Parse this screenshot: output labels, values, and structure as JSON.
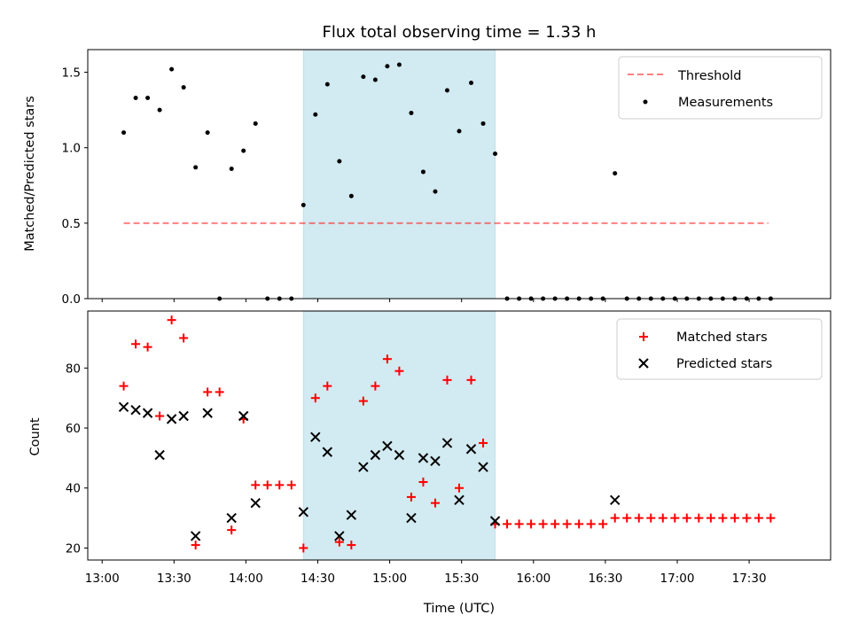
{
  "chart_data": [
    {
      "type": "scatter",
      "title": "Flux total observing time = 1.33 h",
      "xlabel": "",
      "ylabel": "Matched/Predicted stars",
      "ylim": [
        0,
        1.65
      ],
      "yticks": [
        0.0,
        0.5,
        1.0,
        1.5
      ],
      "ytick_labels": [
        "0.0",
        "0.5",
        "1.0",
        "1.5"
      ],
      "x_unit": "UTC time",
      "xlim": [
        "12:54",
        "18:04"
      ],
      "highlight_span": {
        "from": "14:24",
        "to": "15:44",
        "color": "#add8e6"
      },
      "legend": {
        "placement": "upper right"
      },
      "series": [
        {
          "name": "Threshold",
          "kind": "line",
          "style": "dashed",
          "color": "#ff0000",
          "x": [
            "13:09",
            "17:38"
          ],
          "y": [
            0.5,
            0.5
          ]
        },
        {
          "name": "Measurements",
          "kind": "scatter",
          "marker": "dot",
          "color": "#000000",
          "x": [
            "13:09",
            "13:14",
            "13:19",
            "13:24",
            "13:29",
            "13:34",
            "13:39",
            "13:44",
            "13:49",
            "13:54",
            "13:59",
            "14:04",
            "14:09",
            "14:14",
            "14:19",
            "14:24",
            "14:29",
            "14:34",
            "14:39",
            "14:44",
            "14:49",
            "14:54",
            "14:59",
            "15:04",
            "15:09",
            "15:14",
            "15:19",
            "15:24",
            "15:29",
            "15:34",
            "15:39",
            "15:44",
            "15:49",
            "15:54",
            "15:59",
            "16:04",
            "16:09",
            "16:14",
            "16:19",
            "16:24",
            "16:29",
            "16:34",
            "16:39",
            "16:44",
            "16:49",
            "16:54",
            "16:59",
            "17:04",
            "17:09",
            "17:14",
            "17:19",
            "17:24",
            "17:29",
            "17:34",
            "17:39"
          ],
          "y": [
            1.1,
            1.33,
            1.33,
            1.25,
            1.52,
            1.4,
            0.87,
            1.1,
            0.0,
            0.86,
            0.98,
            1.16,
            0.0,
            0.0,
            0.0,
            0.62,
            1.22,
            1.42,
            0.91,
            0.68,
            1.47,
            1.45,
            1.54,
            1.55,
            1.23,
            0.84,
            0.71,
            1.38,
            1.11,
            1.43,
            1.16,
            0.96,
            0.0,
            0.0,
            0.0,
            0.0,
            0.0,
            0.0,
            0.0,
            0.0,
            0.0,
            0.83,
            0.0,
            0.0,
            0.0,
            0.0,
            0.0,
            0.0,
            0.0,
            0.0,
            0.0,
            0.0,
            0.0,
            0.0,
            0.0
          ]
        }
      ]
    },
    {
      "type": "scatter",
      "title": "",
      "xlabel": "Time (UTC)",
      "ylabel": "Count",
      "ylim": [
        16,
        99
      ],
      "yticks": [
        20,
        40,
        60,
        80
      ],
      "ytick_labels": [
        "20",
        "40",
        "60",
        "80"
      ],
      "x_unit": "UTC time",
      "xlim": [
        "12:54",
        "18:04"
      ],
      "xticks": [
        "13:00",
        "13:30",
        "14:00",
        "14:30",
        "15:00",
        "15:30",
        "16:00",
        "16:30",
        "17:00",
        "17:30"
      ],
      "xtick_labels": [
        "13:00",
        "13:30",
        "14:00",
        "14:30",
        "15:00",
        "15:30",
        "16:00",
        "16:30",
        "17:00",
        "17:30"
      ],
      "highlight_span": {
        "from": "14:24",
        "to": "15:44",
        "color": "#add8e6"
      },
      "legend": {
        "placement": "upper right"
      },
      "series": [
        {
          "name": "Matched stars",
          "kind": "scatter",
          "marker": "plus",
          "color": "#ff0000",
          "x": [
            "13:09",
            "13:14",
            "13:19",
            "13:24",
            "13:29",
            "13:34",
            "13:39",
            "13:44",
            "13:49",
            "13:54",
            "13:59",
            "14:04",
            "14:09",
            "14:14",
            "14:19",
            "14:24",
            "14:29",
            "14:34",
            "14:39",
            "14:44",
            "14:49",
            "14:54",
            "14:59",
            "15:04",
            "15:09",
            "15:14",
            "15:19",
            "15:24",
            "15:29",
            "15:34",
            "15:39",
            "15:44",
            "15:49",
            "15:54",
            "15:59",
            "16:04",
            "16:09",
            "16:14",
            "16:19",
            "16:24",
            "16:29",
            "16:34",
            "16:39",
            "16:44",
            "16:49",
            "16:54",
            "16:59",
            "17:04",
            "17:09",
            "17:14",
            "17:19",
            "17:24",
            "17:29",
            "17:34",
            "17:39"
          ],
          "y": [
            74,
            88,
            87,
            64,
            96,
            90,
            21,
            72,
            72,
            26,
            63,
            41,
            41,
            41,
            41,
            20,
            70,
            74,
            22,
            21,
            69,
            74,
            83,
            79,
            37,
            42,
            35,
            76,
            40,
            76,
            55,
            28,
            28,
            28,
            28,
            28,
            28,
            28,
            28,
            28,
            28,
            30,
            30,
            30,
            30,
            30,
            30,
            30,
            30,
            30,
            30,
            30,
            30,
            30,
            30
          ]
        },
        {
          "name": "Predicted stars",
          "kind": "scatter",
          "marker": "x",
          "color": "#000000",
          "x": [
            "13:09",
            "13:14",
            "13:19",
            "13:24",
            "13:29",
            "13:34",
            "13:39",
            "13:44",
            "13:54",
            "13:59",
            "14:04",
            "14:24",
            "14:29",
            "14:34",
            "14:39",
            "14:44",
            "14:49",
            "14:54",
            "14:59",
            "15:04",
            "15:09",
            "15:14",
            "15:19",
            "15:24",
            "15:29",
            "15:34",
            "15:39",
            "15:44",
            "16:34"
          ],
          "y": [
            67,
            66,
            65,
            51,
            63,
            64,
            24,
            65,
            30,
            64,
            35,
            32,
            57,
            52,
            24,
            31,
            47,
            51,
            54,
            51,
            30,
            50,
            49,
            55,
            36,
            53,
            47,
            29,
            36
          ]
        }
      ]
    }
  ]
}
